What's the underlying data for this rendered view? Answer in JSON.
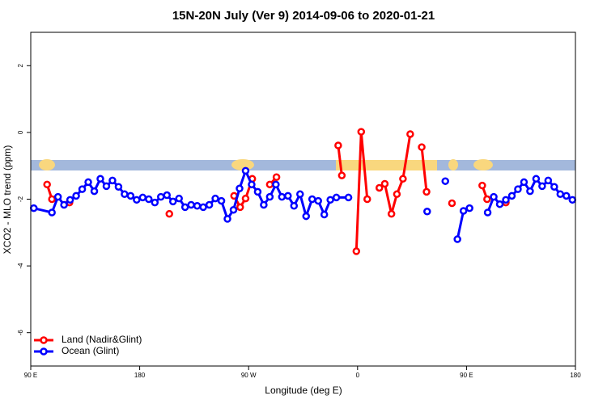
{
  "chart_data": {
    "type": "line",
    "title": "15N-20N July (Ver 9)   2014-09-06 to 2020-01-21",
    "x_label": "Longitude (deg E)",
    "y_label": "XCO2 - MLO trend (ppm)",
    "xlim": [
      90,
      540
    ],
    "xticks": [
      {
        "value": 90,
        "label": "90 E"
      },
      180,
      {
        "value": 270,
        "label": "90 W"
      },
      {
        "value": 360,
        "label": "0"
      },
      {
        "value": 450,
        "label": "90 E"
      },
      {
        "value": 540,
        "label": "180"
      }
    ],
    "ylim": [
      -7,
      3
    ],
    "yticks": [
      2,
      0,
      -2,
      -4,
      -6
    ],
    "legend": "bottom-left",
    "series": [
      {
        "name": "Land (Nadir&Glint)",
        "color": "#ff0000",
        "x": [
          103.5,
          107.5,
          null,
          122,
          null,
          204.5,
          null,
          258,
          263,
          267.5,
          273,
          null,
          287.5,
          293,
          null,
          344,
          347,
          null,
          359,
          363,
          368,
          null,
          378,
          382.5,
          388,
          392.5,
          397.5,
          403.5,
          null,
          413,
          417,
          null,
          438,
          null,
          463,
          467,
          null,
          482.5
        ],
        "values": [
          -1.56,
          -2.0,
          null,
          -2.1,
          null,
          -2.44,
          null,
          -1.9,
          -2.24,
          -1.98,
          -1.39,
          null,
          -1.56,
          -1.34,
          null,
          -0.39,
          -1.29,
          null,
          -3.56,
          0.02,
          -2.0,
          null,
          -1.66,
          -1.54,
          -2.44,
          -1.85,
          -1.39,
          -0.05,
          null,
          -0.44,
          -1.78,
          null,
          -2.12,
          null,
          -1.59,
          -2.0,
          null,
          -2.1
        ]
      },
      {
        "name": "Ocean (Glint)",
        "color": "#0000ff",
        "x": [
          92.5,
          107.5,
          112.5,
          117.5,
          122.5,
          127.5,
          132.5,
          137.5,
          142.5,
          147.5,
          152.5,
          157.5,
          162.5,
          167.5,
          172.5,
          177.5,
          182.5,
          187.5,
          192.5,
          197.5,
          202.5,
          207.5,
          212.5,
          217.5,
          222.5,
          227.5,
          232.5,
          237.5,
          242.5,
          247.5,
          252.5,
          257.5,
          262.5,
          267.5,
          272.5,
          277.5,
          282.5,
          287.5,
          292.5,
          297.5,
          302.5,
          307.5,
          312.5,
          317.5,
          322.5,
          327.5,
          332.5,
          337.5,
          342.5,
          352.5,
          null,
          417.5,
          null,
          432.5,
          null,
          442.5,
          447.5,
          452.5,
          null,
          467.5,
          472.5,
          477.5,
          482.5,
          487.5,
          492.5,
          497.5,
          502.5,
          507.5,
          512.5,
          517.5,
          522.5,
          527.5,
          532.5,
          537.5
        ],
        "values": [
          -2.27,
          -2.4,
          -1.93,
          -2.17,
          -2.02,
          -1.9,
          -1.7,
          -1.49,
          -1.76,
          -1.39,
          -1.61,
          -1.44,
          -1.63,
          -1.85,
          -1.9,
          -2.02,
          -1.95,
          -2.0,
          -2.1,
          -1.93,
          -1.88,
          -2.07,
          -1.98,
          -2.24,
          -2.17,
          -2.2,
          -2.24,
          -2.17,
          -1.98,
          -2.05,
          -2.59,
          -2.32,
          -1.68,
          -1.15,
          -1.56,
          -1.78,
          -2.17,
          -1.93,
          -1.56,
          -1.93,
          -1.9,
          -2.2,
          -1.85,
          -2.51,
          -2.0,
          -2.05,
          -2.46,
          -2.02,
          -1.95,
          -1.95,
          null,
          -2.37,
          null,
          -1.46,
          null,
          -3.2,
          -2.35,
          -2.27,
          null,
          -2.4,
          -1.93,
          -2.15,
          -2.02,
          -1.9,
          -1.7,
          -1.49,
          -1.76,
          -1.39,
          -1.61,
          -1.44,
          -1.63,
          -1.85,
          -1.9,
          -2.02
        ]
      }
    ]
  }
}
